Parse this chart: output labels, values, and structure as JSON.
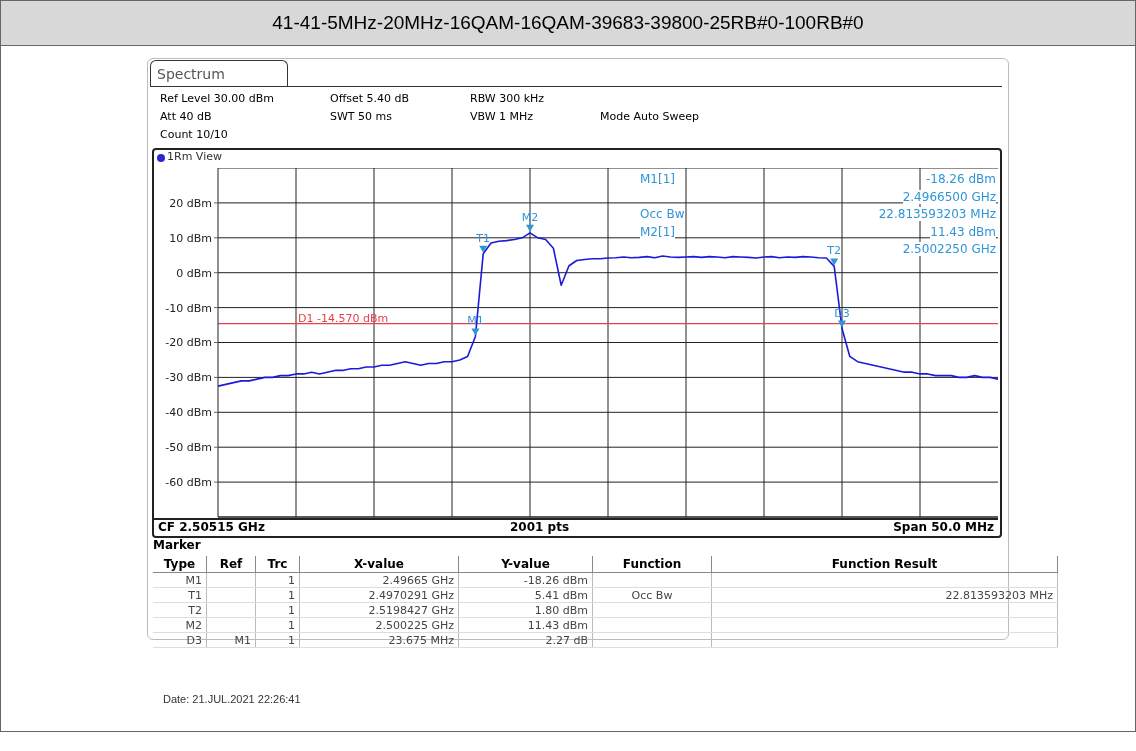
{
  "chart_data": {
    "type": "line",
    "title": "41-41-5MHz-20MHz-16QAM-16QAM-39683-39800-25RB#0-100RB#0",
    "categories": [
      null,
      null,
      null,
      null,
      null,
      null,
      null,
      null,
      null,
      null,
      null,
      null,
      null,
      null,
      null,
      null,
      null,
      null,
      null,
      null,
      null,
      null,
      null,
      null,
      null,
      null,
      null,
      null,
      null,
      null,
      null,
      null,
      null,
      null,
      null,
      null,
      null,
      null,
      null,
      null,
      null,
      null,
      null,
      null,
      null,
      null,
      null,
      null,
      null,
      null,
      null,
      null,
      null,
      null,
      null,
      null,
      null,
      null,
      null,
      null,
      null,
      null,
      null,
      null,
      null,
      null,
      null,
      null,
      null,
      null,
      null,
      null,
      null,
      null,
      null,
      null,
      null,
      null,
      null,
      null,
      null,
      null,
      null,
      null,
      null,
      null,
      null,
      null,
      null,
      null,
      null,
      null,
      null,
      null,
      null,
      null,
      null,
      null,
      null,
      null,
      null
    ],
    "values": [
      -32.5,
      -32,
      -31.5,
      -31,
      -31,
      -30.5,
      -30,
      -30,
      -29.5,
      -29.5,
      -29,
      -29,
      -28.5,
      -29,
      -28.5,
      -28,
      -28,
      -27.5,
      -27.5,
      -27,
      -27,
      -26.5,
      -26.5,
      -26,
      -25.5,
      -26,
      -26.5,
      -26,
      -26,
      -25.5,
      -25.5,
      -25,
      -24,
      -18.26,
      5.41,
      8.5,
      9,
      9.2,
      9.5,
      10,
      11.43,
      10,
      9.5,
      7,
      -3.6,
      2,
      3.5,
      3.8,
      4,
      4,
      4.2,
      4.3,
      4.5,
      4.3,
      4.4,
      4.6,
      4.3,
      4.8,
      4.5,
      4.4,
      4.5,
      4.6,
      4.4,
      4.6,
      4.5,
      4.3,
      4.6,
      4.5,
      4.4,
      4.2,
      4.5,
      4.6,
      4.3,
      4.5,
      4.4,
      4.6,
      4.5,
      4.3,
      4.2,
      1.8,
      -15.99,
      -24,
      -25.5,
      -26,
      -26.5,
      -27,
      -27.5,
      -28,
      -28.5,
      -28.5,
      -29,
      -29,
      -29.5,
      -29.5,
      -29.5,
      -30,
      -30,
      -29.5,
      -30,
      -30,
      -30.5
    ],
    "color": "#1a1adb",
    "ylim": [
      -70,
      30
    ],
    "yticks": [
      {
        "value": 20,
        "label": "20 dBm"
      },
      {
        "value": 10,
        "label": "10 dBm"
      },
      {
        "value": 0,
        "label": "0 dBm"
      },
      {
        "value": -10,
        "label": "-10 dBm"
      },
      {
        "value": -20,
        "label": "-20 dBm"
      },
      {
        "value": -30,
        "label": "-30 dBm"
      },
      {
        "value": -40,
        "label": "-40 dBm"
      },
      {
        "value": -50,
        "label": "-50 dBm"
      },
      {
        "value": -60,
        "label": "-60 dBm"
      }
    ],
    "tick_labels": "y",
    "grid": true,
    "ref_lines": [
      {
        "axis": "y",
        "value": -14.57,
        "label": "D1 -14.570 dBm",
        "color": "#e8404a"
      }
    ],
    "annotations": [
      "Spectrum",
      "Ref Level 30.00 dBm",
      "Offset 5.40 dB",
      "RBW 300 kHz",
      "Att 40 dB",
      "SWT 50 ms",
      "VBW 1 MHz",
      "Mode Auto Sweep",
      "Count 10/10",
      "1Rm View",
      "M1[1]",
      "-18.26 dBm",
      "2.4966500 GHz",
      "Occ Bw",
      "22.813593203 MHz",
      "M2[1]",
      "11.43 dBm",
      "2.5002250 GHz",
      "CF 2.50515 GHz",
      "2001 pts",
      "Span 50.0 MHz",
      "Marker",
      "Type\tRef\tTrc\tX-value\tY-value\tFunction\tFunction Result",
      "M1\t\t1\t2.49665 GHz\t-18.26 dBm\t\t",
      "T1\t\t1\t2.4970291 GHz\t5.41 dBm\tOcc Bw\t22.813593203 MHz",
      "T2\t\t1\t2.5198427 GHz\t1.80 dBm\t\t",
      "M2\t\t1\t2.500225 GHz\t11.43 dBm\t\t",
      "D3\tM1\t1\t23.675 MHz\t2.27 dB\t\t",
      "Date: 21.JUL.2021 22:26:41",
      {
        "text": "M1",
        "y": -18.26
      },
      {
        "text": "T1",
        "y": 5.41
      },
      {
        "text": "T2",
        "y": 1.8
      },
      {
        "text": "M2",
        "y": 11.43
      },
      {
        "text": "D3",
        "y": -15.99
      }
    ]
  }
}
